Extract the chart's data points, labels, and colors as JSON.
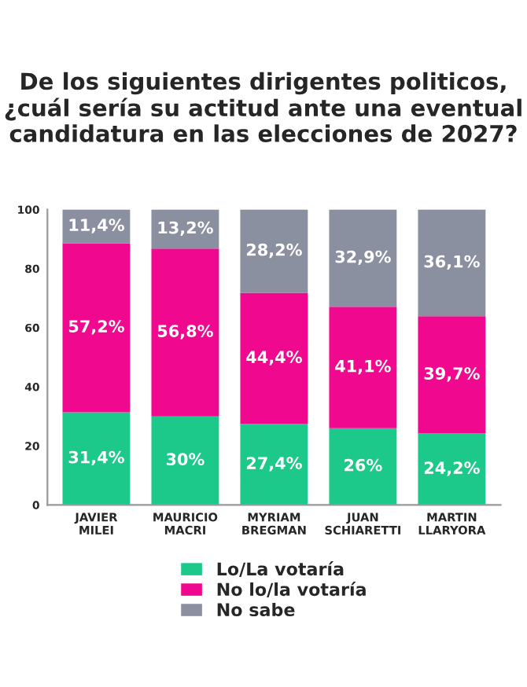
{
  "chart_data": {
    "type": "bar",
    "title": "De los siguientes dirigentes politicos, ¿cuál sería su actitud ante una eventual candidatura en las elecciones de 2027?",
    "categories": [
      "JAVIER\nMILEI",
      "MAURICIO\nMACRI",
      "MYRIAM\nBREGMAN",
      "JUAN\nSCHIARETTI",
      "MARTIN\nLLARYORA"
    ],
    "stacked": true,
    "series": [
      {
        "name": "Lo/La votaría",
        "color": "#1dc98a",
        "values": [
          31.4,
          30,
          27.4,
          26,
          24.2
        ],
        "value_labels": [
          "31,4%",
          "30%",
          "27,4%",
          "26%",
          "24,2%"
        ]
      },
      {
        "name": "No lo/la votaría",
        "color": "#f0088f",
        "values": [
          57.2,
          56.8,
          44.4,
          41.1,
          39.7
        ],
        "value_labels": [
          "57,2%",
          "56,8%",
          "44,4%",
          "41,1%",
          "39,7%"
        ]
      },
      {
        "name": "No sabe",
        "color": "#8a90a0",
        "values": [
          11.4,
          13.2,
          28.2,
          32.9,
          36.1
        ],
        "value_labels": [
          "11,4%",
          "13,2%",
          "28,2%",
          "32,9%",
          "36,1%"
        ]
      }
    ],
    "ylim": [
      0,
      100
    ],
    "yticks": [
      0,
      20,
      40,
      60,
      80,
      100
    ],
    "grid": false,
    "legend": "bottom"
  }
}
